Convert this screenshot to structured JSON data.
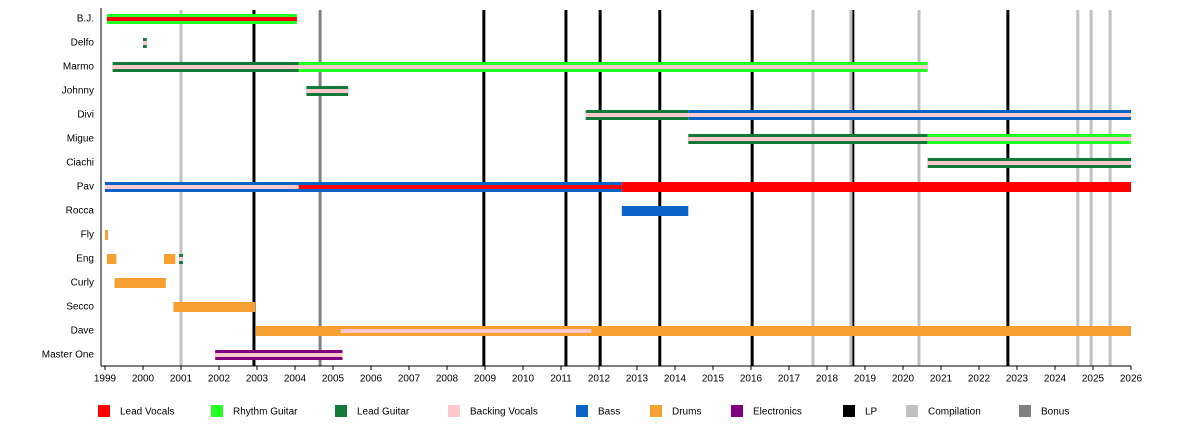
{
  "chart_data": {
    "type": "timeline",
    "xlim": [
      1999,
      2026
    ],
    "xticks": [
      1999,
      2000,
      2001,
      2002,
      2003,
      2004,
      2005,
      2006,
      2007,
      2008,
      2009,
      2010,
      2011,
      2012,
      2013,
      2014,
      2015,
      2016,
      2017,
      2018,
      2019,
      2020,
      2021,
      2022,
      2023,
      2024,
      2025,
      2026
    ],
    "roles": [
      {
        "name": "Lead Vocals",
        "color": "#ff0000"
      },
      {
        "name": "Rhythm Guitar",
        "color": "#22ff22"
      },
      {
        "name": "Lead Guitar",
        "color": "#137a3a"
      },
      {
        "name": "Backing Vocals",
        "color": "#ffc8cc"
      },
      {
        "name": "Bass",
        "color": "#0a64c8"
      },
      {
        "name": "Drums",
        "color": "#f5a030"
      },
      {
        "name": "Electronics",
        "color": "#800080"
      }
    ],
    "events": [
      {
        "name": "LP",
        "color": "#000000",
        "values": [
          2002.92,
          2008.97,
          2011.13,
          2012.03,
          2013.6,
          2016.03,
          2018.68,
          2022.76
        ]
      },
      {
        "name": "Compilation",
        "color": "#c0c0c0",
        "values": [
          2001.0,
          2017.63,
          2018.63,
          2020.42,
          2024.6,
          2024.95,
          2025.45
        ]
      },
      {
        "name": "Bonus",
        "color": "#808080",
        "values": [
          2004.66
        ]
      }
    ],
    "members": [
      {
        "name": "B.J.",
        "bars": [
          {
            "role": "Rhythm Guitar",
            "start": 1999.05,
            "end": 2004.05
          },
          {
            "role": "Lead Vocals",
            "start": 1999.05,
            "end": 2004.05
          }
        ]
      },
      {
        "name": "Delfo",
        "bars": [
          {
            "role": "Lead Guitar",
            "start": 2000.0,
            "end": 2000.1
          },
          {
            "role": "Backing Vocals",
            "start": 2000.0,
            "end": 2000.1
          }
        ]
      },
      {
        "name": "Marmo",
        "bars": [
          {
            "role": "Lead Guitar",
            "start": 1999.2,
            "end": 2004.1
          },
          {
            "role": "Rhythm Guitar",
            "start": 2004.1,
            "end": 2020.65
          },
          {
            "role": "Backing Vocals",
            "start": 1999.2,
            "end": 2020.65
          }
        ]
      },
      {
        "name": "Johnny",
        "bars": [
          {
            "role": "Lead Guitar",
            "start": 2004.3,
            "end": 2005.4
          },
          {
            "role": "Backing Vocals",
            "start": 2004.3,
            "end": 2005.4
          }
        ]
      },
      {
        "name": "Divi",
        "bars": [
          {
            "role": "Lead Guitar",
            "start": 2011.65,
            "end": 2014.35
          },
          {
            "role": "Bass",
            "start": 2014.35,
            "end": 2026
          },
          {
            "role": "Backing Vocals",
            "start": 2011.65,
            "end": 2026
          }
        ]
      },
      {
        "name": "Migue",
        "bars": [
          {
            "role": "Lead Guitar",
            "start": 2014.35,
            "end": 2020.65
          },
          {
            "role": "Rhythm Guitar",
            "start": 2020.65,
            "end": 2026
          },
          {
            "role": "Backing Vocals",
            "start": 2014.35,
            "end": 2026
          }
        ]
      },
      {
        "name": "Ciachi",
        "bars": [
          {
            "role": "Lead Guitar",
            "start": 2020.65,
            "end": 2026
          },
          {
            "role": "Backing Vocals",
            "start": 2020.65,
            "end": 2026
          }
        ]
      },
      {
        "name": "Pav",
        "bars": [
          {
            "role": "Bass",
            "start": 1999.0,
            "end": 2012.6
          },
          {
            "role": "Lead Vocals",
            "start": 2012.6,
            "end": 2026
          },
          {
            "role": "Backing Vocals",
            "start": 1999.0,
            "end": 2004.1
          },
          {
            "role": "Lead Vocals",
            "start": 2004.1,
            "end": 2012.6
          }
        ]
      },
      {
        "name": "Rocca",
        "bars": [
          {
            "role": "Bass",
            "start": 2012.6,
            "end": 2014.35
          }
        ]
      },
      {
        "name": "Fly",
        "bars": [
          {
            "role": "Drums",
            "start": 1999.0,
            "end": 1999.08
          }
        ]
      },
      {
        "name": "Eng",
        "bars": [
          {
            "role": "Drums",
            "start": 1999.05,
            "end": 1999.3
          },
          {
            "role": "Drums",
            "start": 2000.55,
            "end": 2000.85
          },
          {
            "role": "Lead Guitar",
            "start": 2000.95,
            "end": 2001.05
          },
          {
            "role": "Backing Vocals",
            "start": 2000.95,
            "end": 2001.05
          }
        ]
      },
      {
        "name": "Curly",
        "bars": [
          {
            "role": "Drums",
            "start": 1999.25,
            "end": 2000.6
          }
        ]
      },
      {
        "name": "Secco",
        "bars": [
          {
            "role": "Drums",
            "start": 2000.8,
            "end": 2002.95
          }
        ]
      },
      {
        "name": "Dave",
        "bars": [
          {
            "role": "Drums",
            "start": 2002.97,
            "end": 2026
          },
          {
            "role": "Backing Vocals",
            "start": 2005.2,
            "end": 2011.8
          }
        ]
      },
      {
        "name": "Master One",
        "bars": [
          {
            "role": "Electronics",
            "start": 2001.9,
            "end": 2005.25
          },
          {
            "role": "Backing Vocals",
            "start": 2001.9,
            "end": 2005.25
          }
        ]
      }
    ]
  }
}
